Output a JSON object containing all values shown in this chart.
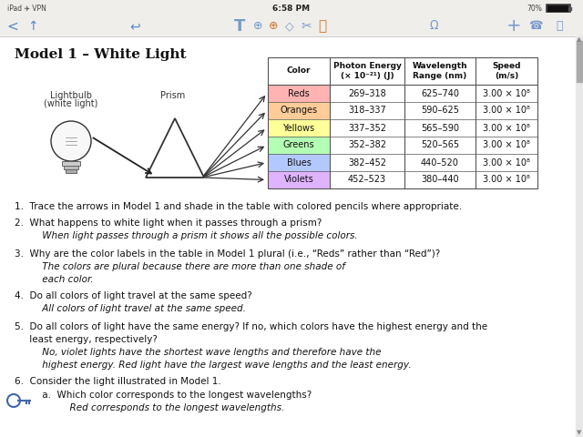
{
  "title": "Model 1 – White Light",
  "table_headers": [
    "Color",
    "Photon Energy\n(× 10⁻²¹) (J)",
    "Wavelength\nRange (nm)",
    "Speed\n(m/s)"
  ],
  "table_rows": [
    [
      "Reds",
      "269–318",
      "625–740",
      "3.00 × 10⁸"
    ],
    [
      "Oranges",
      "318–337",
      "590–625",
      "3.00 × 10⁸"
    ],
    [
      "Yellows",
      "337–352",
      "565–590",
      "3.00 × 10⁸"
    ],
    [
      "Greens",
      "352–382",
      "520–565",
      "3.00 × 10⁸"
    ],
    [
      "Blues",
      "382–452",
      "440–520",
      "3.00 × 10⁸"
    ],
    [
      "Violets",
      "452–523",
      "380–440",
      "3.00 × 10⁸"
    ]
  ],
  "row_colors": [
    "#ffb3b3",
    "#ffcc99",
    "#ffff99",
    "#b3ffb3",
    "#b3c8ff",
    "#e0b3ff"
  ],
  "q1": "1.  Trace the arrows in Model 1 and shade in the table with colored pencils where appropriate.",
  "q2": "2.  What happens to white light when it passes through a prism?",
  "a2": "     When light passes through a prism it shows all the possible colors.",
  "q3": "3.  Why are the color labels in the table in Model 1 plural (i.e., “Reds” rather than “Red”)?",
  "a3a": "     The colors are plural because there are more than one shade of",
  "a3b": "     each color.",
  "q4": "4.  Do all colors of light travel at the same speed?",
  "a4": "     All colors of light travel at the same speed.",
  "q5a": "5.  Do all colors of light have the same energy? If no, which colors have the highest energy and the",
  "q5b": "     least energy, respectively?",
  "a5a": "     No, violet lights have the shortest wave lengths and therefore have the",
  "a5b": "     highest energy. Red light have the largest wave lengths and the least energy.",
  "q6": "6.  Consider the light illustrated in Model 1.",
  "q6a": "     a.  Which color corresponds to the longest wavelengths?",
  "a6a": "          Red corresponds to the longest wavelengths.",
  "lightbulb_label1": "Lightbulb",
  "lightbulb_label2": "(white light)",
  "prism_label": "Prism",
  "bg_color": "#ffffff",
  "statusbar_color": "#f0eeea",
  "toolbar_color": "#f0eeea"
}
